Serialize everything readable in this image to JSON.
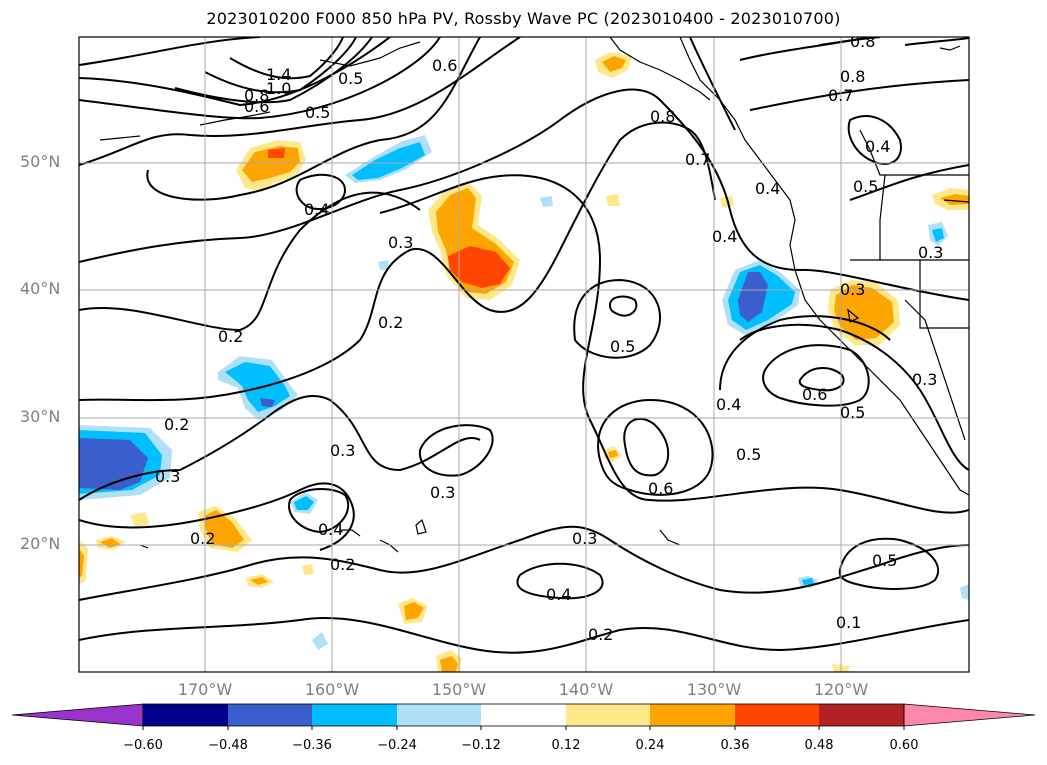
{
  "title": "2023010200 F000 850 hPa PV, Rossby Wave PC (2023010400 - 2023010700)",
  "lat_labels": [
    "50°N",
    "40°N",
    "30°N",
    "20°N"
  ],
  "lon_labels": [
    "170°W",
    "160°W",
    "150°W",
    "140°W",
    "130°W",
    "120°W"
  ],
  "colorbar": {
    "ticks": [
      "−0.60",
      "−0.48",
      "−0.36",
      "−0.24",
      "−0.12",
      "0.12",
      "0.24",
      "0.36",
      "0.48",
      "0.60"
    ],
    "colors": [
      "#9933cc",
      "#00008b",
      "#3a5fcd",
      "#00bfff",
      "#b0e0f8",
      "#ffffff",
      "#ffe88a",
      "#ffa500",
      "#ff4500",
      "#b22222",
      "#ff88aa"
    ]
  },
  "contour_labels": [
    "1.4",
    "1.0",
    "0.8",
    "0.6",
    "0.5",
    "0.6",
    "0.8",
    "0.8",
    "0.7",
    "0.8",
    "0.7",
    "0.4",
    "0.4",
    "0.4",
    "0.5",
    "0.4",
    "0.3",
    "0.2",
    "0.2",
    "0.5",
    "0.6",
    "0.5",
    "0.4",
    "0.5",
    "0.2",
    "0.3",
    "0.3",
    "0.3",
    "0.6",
    "0.5",
    "0.2",
    "0.4",
    "0.2",
    "0.3",
    "0.4",
    "0.2",
    "0.5",
    "0.3",
    "0.3",
    "0.3",
    "0.1"
  ],
  "map_colors": {
    "blue_dark": "#3a5fcd",
    "blue": "#00bfff",
    "blue_light": "#b0e0f8",
    "yellow": "#ffe88a",
    "orange": "#ffa500",
    "red": "#ff4500"
  }
}
